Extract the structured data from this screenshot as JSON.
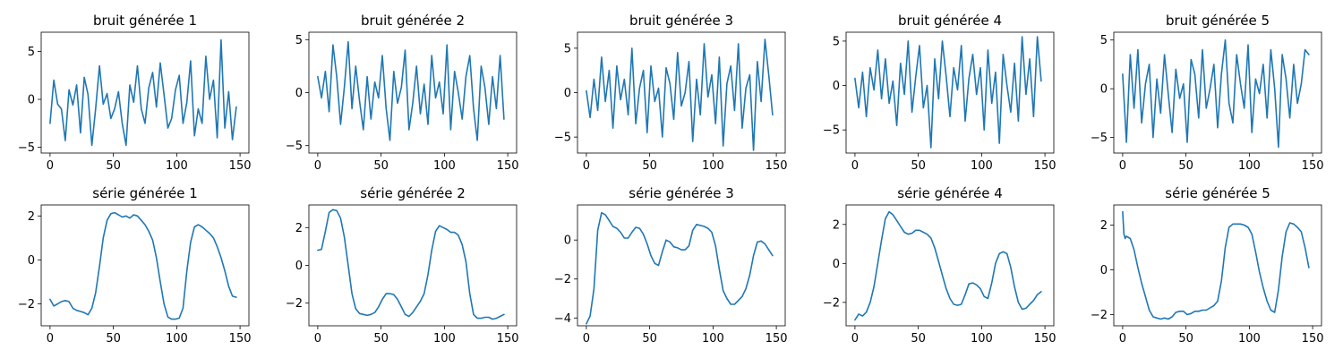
{
  "figure": {
    "line_color": "#1f77b4",
    "grid": false,
    "legend": "none"
  },
  "chart_data": [
    {
      "type": "line",
      "title": "bruit générée 1",
      "xlim": [
        -7,
        157
      ],
      "ylim": [
        -5.6,
        7.0
      ],
      "xticks": [
        0,
        50,
        100,
        150
      ],
      "yticks": [
        -5,
        0,
        5
      ],
      "x_start": 0,
      "x_step": 3,
      "values": [
        -2.5,
        2.0,
        -0.5,
        -1.0,
        -4.3,
        1.0,
        -0.6,
        1.5,
        -3.5,
        2.3,
        0.5,
        -4.8,
        -1.0,
        3.5,
        -0.5,
        0.6,
        -2.0,
        -1.0,
        0.8,
        -2.5,
        -4.8,
        1.5,
        -0.3,
        3.5,
        -1.0,
        -2.5,
        1.2,
        2.8,
        -0.8,
        3.8,
        0.5,
        -3.0,
        -2.0,
        1.0,
        2.5,
        -2.5,
        -0.3,
        4.0,
        -3.8,
        -1.0,
        -2.5,
        4.5,
        0.0,
        2.0,
        -4.0,
        6.2,
        -3.0,
        0.8,
        -4.2,
        -0.8
      ]
    },
    {
      "type": "line",
      "title": "bruit générée 2",
      "xlim": [
        -7,
        157
      ],
      "ylim": [
        -5.7,
        5.7
      ],
      "xticks": [
        0,
        50,
        100,
        150
      ],
      "yticks": [
        -5,
        0,
        5
      ],
      "x_start": 0,
      "x_step": 3,
      "values": [
        1.5,
        -0.5,
        2.0,
        -1.8,
        4.5,
        1.5,
        -3.0,
        0.5,
        4.8,
        -1.5,
        2.5,
        -0.8,
        -3.5,
        1.5,
        -2.5,
        1.0,
        -0.5,
        3.5,
        -1.5,
        -4.5,
        2.0,
        -1.0,
        0.5,
        4.0,
        -3.5,
        -1.0,
        2.5,
        -2.0,
        0.8,
        -3.0,
        3.5,
        -0.5,
        1.0,
        -2.0,
        4.5,
        -3.5,
        2.0,
        0.0,
        -2.5,
        1.5,
        3.5,
        -1.5,
        -4.5,
        2.5,
        0.5,
        -3.0,
        1.5,
        -1.5,
        3.5,
        -2.5
      ]
    },
    {
      "type": "line",
      "title": "bruit générée 3",
      "xlim": [
        -7,
        157
      ],
      "ylim": [
        -6.8,
        6.8
      ],
      "xticks": [
        0,
        50,
        100,
        150
      ],
      "yticks": [
        -5,
        0,
        5
      ],
      "x_start": 0,
      "x_step": 3,
      "values": [
        0.2,
        -2.8,
        1.5,
        -2.0,
        4.0,
        -1.0,
        2.5,
        -4.0,
        3.0,
        -0.8,
        1.5,
        -2.5,
        5.0,
        -3.5,
        0.5,
        2.5,
        -4.5,
        3.0,
        -1.0,
        0.5,
        -5.0,
        2.8,
        1.0,
        -3.0,
        4.5,
        -1.5,
        0.0,
        3.5,
        -5.5,
        1.5,
        -2.5,
        5.5,
        -0.5,
        2.0,
        -3.5,
        4.0,
        -6.0,
        1.0,
        3.0,
        -2.0,
        5.5,
        -4.0,
        0.5,
        2.0,
        -6.5,
        3.5,
        -1.0,
        6.0,
        2.0,
        -2.5
      ]
    },
    {
      "type": "line",
      "title": "bruit générée 4",
      "xlim": [
        -7,
        157
      ],
      "ylim": [
        -7.6,
        6.0
      ],
      "xticks": [
        0,
        50,
        100,
        150
      ],
      "yticks": [
        -5,
        0,
        5
      ],
      "x_start": 0,
      "x_step": 3,
      "values": [
        0.8,
        -2.5,
        1.5,
        -3.5,
        2.0,
        -0.5,
        4.0,
        -1.5,
        3.0,
        -2.0,
        0.5,
        -4.5,
        2.5,
        -1.0,
        5.0,
        -3.0,
        1.0,
        4.5,
        -2.5,
        0.0,
        -7.0,
        3.0,
        -1.5,
        5.0,
        1.0,
        -3.5,
        2.0,
        -0.5,
        4.5,
        -4.0,
        0.8,
        3.5,
        -1.0,
        2.0,
        -5.0,
        4.0,
        -2.0,
        1.5,
        -6.5,
        3.5,
        0.0,
        -3.0,
        2.5,
        -4.0,
        5.5,
        -1.0,
        3.0,
        -3.5,
        5.5,
        0.5
      ]
    },
    {
      "type": "line",
      "title": "bruit générée 5",
      "xlim": [
        -7,
        157
      ],
      "ylim": [
        -6.6,
        5.8
      ],
      "xticks": [
        0,
        50,
        100,
        150
      ],
      "yticks": [
        -5,
        0,
        5
      ],
      "x_start": 0,
      "x_step": 3,
      "values": [
        1.5,
        -5.5,
        3.5,
        -2.0,
        4.0,
        -3.5,
        0.5,
        2.5,
        -5.0,
        1.0,
        -2.5,
        3.5,
        -0.5,
        -4.5,
        2.0,
        -1.0,
        0.5,
        -5.5,
        3.0,
        1.5,
        -3.0,
        4.0,
        -2.0,
        0.0,
        2.5,
        -4.0,
        1.5,
        5.0,
        -1.5,
        -3.5,
        3.5,
        0.5,
        -2.0,
        4.5,
        -4.5,
        1.0,
        -0.5,
        2.5,
        -3.0,
        4.0,
        0.0,
        -6.0,
        3.5,
        1.0,
        -3.0,
        2.5,
        -1.5,
        0.5,
        4.0,
        3.5
      ]
    },
    {
      "type": "line",
      "title": "série générée 1",
      "xlim": [
        -7,
        157
      ],
      "ylim": [
        -3.0,
        2.5
      ],
      "xticks": [
        0,
        50,
        100,
        150
      ],
      "yticks": [
        -2,
        0,
        2
      ],
      "x": [
        0,
        3,
        6,
        9,
        12,
        15,
        18,
        21,
        24,
        27,
        30,
        33,
        36,
        39,
        42,
        45,
        48,
        51,
        54,
        57,
        60,
        63,
        66,
        69,
        72,
        75,
        78,
        81,
        84,
        87,
        90,
        93,
        96,
        99,
        102,
        105,
        108,
        111,
        114,
        117,
        120,
        123,
        126,
        129,
        132,
        135,
        138,
        141,
        144,
        147
      ],
      "values": [
        -1.8,
        -2.1,
        -2.0,
        -1.9,
        -1.85,
        -1.9,
        -2.2,
        -2.3,
        -2.35,
        -2.4,
        -2.5,
        -2.2,
        -1.5,
        -0.3,
        1.0,
        1.8,
        2.1,
        2.15,
        2.05,
        1.95,
        2.0,
        1.9,
        2.05,
        2.0,
        1.8,
        1.6,
        1.3,
        0.9,
        0.1,
        -1.0,
        -2.0,
        -2.6,
        -2.7,
        -2.7,
        -2.65,
        -2.2,
        -0.5,
        0.8,
        1.5,
        1.6,
        1.5,
        1.35,
        1.2,
        1.0,
        0.6,
        0.1,
        -0.5,
        -1.2,
        -1.65,
        -1.7
      ]
    },
    {
      "type": "line",
      "title": "série générée 2",
      "xlim": [
        -7,
        157
      ],
      "ylim": [
        -3.2,
        3.2
      ],
      "xticks": [
        0,
        50,
        100,
        150
      ],
      "yticks": [
        -2,
        0,
        2
      ],
      "x": [
        0,
        3,
        6,
        9,
        12,
        15,
        18,
        21,
        24,
        27,
        30,
        33,
        36,
        39,
        42,
        45,
        48,
        51,
        54,
        57,
        60,
        63,
        66,
        69,
        72,
        75,
        78,
        81,
        84,
        87,
        90,
        93,
        96,
        99,
        102,
        105,
        108,
        111,
        114,
        117,
        120,
        123,
        126,
        129,
        132,
        135,
        138,
        141,
        144,
        147
      ],
      "values": [
        0.8,
        0.85,
        1.8,
        2.8,
        2.95,
        2.9,
        2.5,
        1.5,
        0.0,
        -1.5,
        -2.3,
        -2.55,
        -2.6,
        -2.65,
        -2.6,
        -2.5,
        -2.2,
        -1.8,
        -1.5,
        -1.5,
        -1.55,
        -1.8,
        -2.2,
        -2.6,
        -2.7,
        -2.5,
        -2.2,
        -1.9,
        -1.5,
        -0.5,
        0.8,
        1.8,
        2.1,
        2.0,
        1.9,
        1.75,
        1.75,
        1.6,
        1.1,
        0.2,
        -1.5,
        -2.6,
        -2.8,
        -2.8,
        -2.75,
        -2.75,
        -2.85,
        -2.8,
        -2.7,
        -2.6
      ]
    },
    {
      "type": "line",
      "title": "série générée 3",
      "xlim": [
        -7,
        157
      ],
      "ylim": [
        -4.4,
        1.8
      ],
      "xticks": [
        0,
        50,
        100,
        150
      ],
      "yticks": [
        -4,
        -2,
        0
      ],
      "x": [
        0,
        3,
        6,
        9,
        12,
        15,
        18,
        21,
        24,
        27,
        30,
        33,
        36,
        39,
        42,
        45,
        48,
        51,
        54,
        57,
        60,
        63,
        66,
        69,
        72,
        75,
        78,
        81,
        84,
        87,
        90,
        93,
        96,
        99,
        102,
        105,
        108,
        111,
        114,
        117,
        120,
        123,
        126,
        129,
        132,
        135,
        138,
        141,
        144,
        147
      ],
      "values": [
        -4.3,
        -3.9,
        -2.5,
        0.5,
        1.4,
        1.3,
        1.0,
        0.7,
        0.6,
        0.4,
        0.1,
        0.1,
        0.4,
        0.65,
        0.6,
        0.3,
        -0.2,
        -0.8,
        -1.2,
        -1.3,
        -0.6,
        0.0,
        -0.1,
        -0.35,
        -0.4,
        -0.5,
        -0.5,
        -0.3,
        0.5,
        0.8,
        0.75,
        0.7,
        0.6,
        0.4,
        -0.3,
        -1.5,
        -2.6,
        -3.0,
        -3.3,
        -3.3,
        -3.1,
        -2.9,
        -2.5,
        -1.8,
        -0.8,
        -0.1,
        -0.05,
        -0.2,
        -0.5,
        -0.8
      ]
    },
    {
      "type": "line",
      "title": "série générée 4",
      "xlim": [
        -7,
        157
      ],
      "ylim": [
        -3.2,
        3.0
      ],
      "xticks": [
        0,
        50,
        100,
        150
      ],
      "yticks": [
        -2,
        0,
        2
      ],
      "x": [
        0,
        3,
        6,
        9,
        12,
        15,
        18,
        21,
        24,
        27,
        30,
        33,
        36,
        39,
        42,
        45,
        48,
        51,
        54,
        57,
        60,
        63,
        66,
        69,
        72,
        75,
        78,
        81,
        84,
        87,
        90,
        93,
        96,
        99,
        102,
        105,
        108,
        111,
        114,
        117,
        120,
        123,
        126,
        129,
        132,
        135,
        138,
        141,
        144,
        147
      ],
      "values": [
        -2.9,
        -2.6,
        -2.7,
        -2.5,
        -2.0,
        -1.2,
        0.0,
        1.2,
        2.3,
        2.65,
        2.5,
        2.2,
        1.9,
        1.6,
        1.5,
        1.55,
        1.7,
        1.7,
        1.6,
        1.5,
        1.3,
        0.8,
        0.1,
        -0.6,
        -1.3,
        -1.8,
        -2.1,
        -2.15,
        -2.1,
        -1.6,
        -1.05,
        -1.0,
        -1.1,
        -1.3,
        -1.7,
        -1.8,
        -1.0,
        0.0,
        0.5,
        0.6,
        0.5,
        -0.2,
        -1.2,
        -2.0,
        -2.35,
        -2.3,
        -2.1,
        -1.9,
        -1.6,
        -1.45
      ]
    },
    {
      "type": "line",
      "title": "série générée 5",
      "xlim": [
        -7,
        157
      ],
      "ylim": [
        -2.5,
        2.9
      ],
      "xticks": [
        0,
        50,
        100,
        150
      ],
      "yticks": [
        -2,
        0,
        2
      ],
      "x": [
        0,
        1,
        2,
        3,
        6,
        9,
        12,
        15,
        18,
        21,
        24,
        27,
        30,
        33,
        36,
        39,
        42,
        45,
        48,
        51,
        54,
        57,
        60,
        63,
        66,
        69,
        72,
        75,
        78,
        81,
        84,
        87,
        90,
        93,
        96,
        99,
        102,
        105,
        108,
        111,
        114,
        117,
        120,
        123,
        126,
        129,
        132,
        135,
        138,
        141,
        144,
        147
      ],
      "values": [
        2.6,
        1.6,
        1.4,
        1.5,
        1.4,
        0.9,
        0.1,
        -0.6,
        -1.2,
        -1.8,
        -2.1,
        -2.15,
        -2.2,
        -2.15,
        -2.2,
        -2.1,
        -1.9,
        -1.85,
        -1.85,
        -2.0,
        -1.95,
        -1.85,
        -1.85,
        -1.8,
        -1.8,
        -1.7,
        -1.6,
        -1.4,
        -0.5,
        1.0,
        1.9,
        2.05,
        2.05,
        2.05,
        2.0,
        1.9,
        1.6,
        0.8,
        -0.1,
        -0.8,
        -1.4,
        -1.8,
        -1.9,
        -0.9,
        0.6,
        1.7,
        2.1,
        2.05,
        1.9,
        1.7,
        1.0,
        0.1
      ]
    }
  ]
}
